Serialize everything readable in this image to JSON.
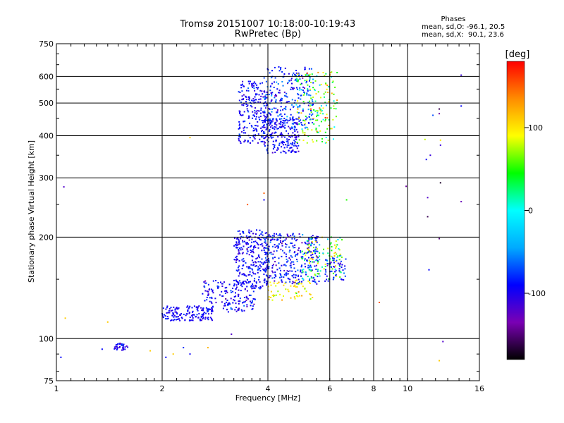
{
  "header": {
    "title_line1": "Tromsø 20151007 10:18:00-10:19:43",
    "title_line2": "RwPretec (Bp)"
  },
  "phases_box": {
    "title": "Phases",
    "line_o": "mean, sd,O: -96.1, 20.5",
    "line_x": "mean, sd,X:  90.1, 23.6"
  },
  "colorbar": {
    "unit_label": "[deg]",
    "range": [
      -180,
      180
    ],
    "ticks": [
      {
        "value": 100,
        "label": "100"
      },
      {
        "value": 0,
        "label": "0"
      },
      {
        "value": -100,
        "label": "-100"
      }
    ],
    "colors": [
      "#000000",
      "#7a00b4",
      "#0000ff",
      "#00aaff",
      "#00ffff",
      "#00ff00",
      "#ffff00",
      "#ff8c00",
      "#ff0000"
    ]
  },
  "chart_data": {
    "type": "scatter",
    "title": "Tromsø 20151007 10:18:00-10:19:43",
    "subtitle": "RwPretec (Bp)",
    "xlabel": "Frequency [MHz]",
    "ylabel": "Stationary phase Virtual Height [km]",
    "x_scale": "log",
    "y_scale": "log",
    "xlim": [
      1,
      16
    ],
    "ylim": [
      75,
      750
    ],
    "x_ticks": [
      1,
      2,
      4,
      6,
      8,
      10,
      16
    ],
    "x_tick_labels": [
      "1",
      "2",
      "4",
      "6",
      "8",
      "10",
      "16"
    ],
    "y_ticks": [
      75,
      100,
      200,
      300,
      400,
      500,
      600,
      750
    ],
    "y_tick_labels": [
      "75",
      "100",
      "200",
      "300",
      "400",
      "500",
      "600",
      "750"
    ],
    "grid": true,
    "color_variable": "phase [deg]",
    "clusters": [
      {
        "freq_range": [
          1.45,
          1.6
        ],
        "height_range": [
          92,
          97
        ],
        "phase_mean": -100,
        "phase_sd": 15,
        "n": 35
      },
      {
        "freq_range": [
          2.0,
          2.8
        ],
        "height_range": [
          113,
          125
        ],
        "phase_mean": -95,
        "phase_sd": 10,
        "n": 150
      },
      {
        "freq_range": [
          2.6,
          3.7
        ],
        "height_range": [
          120,
          150
        ],
        "phase_mean": -95,
        "phase_sd": 15,
        "n": 180
      },
      {
        "freq_range": [
          3.2,
          4.0
        ],
        "height_range": [
          140,
          210
        ],
        "phase_mean": -95,
        "phase_sd": 12,
        "n": 260
      },
      {
        "freq_range": [
          3.9,
          5.6
        ],
        "height_range": [
          145,
          205
        ],
        "phase_mean": -90,
        "phase_sd": 20,
        "n": 320
      },
      {
        "freq_range": [
          4.0,
          5.4
        ],
        "height_range": [
          130,
          150
        ],
        "phase_mean": 100,
        "phase_sd": 15,
        "n": 60
      },
      {
        "freq_range": [
          5.0,
          6.5
        ],
        "height_range": [
          150,
          200
        ],
        "phase_mean": 40,
        "phase_sd": 40,
        "n": 120
      },
      {
        "freq_range": [
          5.8,
          6.7
        ],
        "height_range": [
          148,
          175
        ],
        "phase_mean": -90,
        "phase_sd": 15,
        "n": 50
      },
      {
        "freq_range": [
          3.3,
          4.0
        ],
        "height_range": [
          380,
          580
        ],
        "phase_mean": -95,
        "phase_sd": 12,
        "n": 220
      },
      {
        "freq_range": [
          3.9,
          4.9
        ],
        "height_range": [
          355,
          450
        ],
        "phase_mean": -95,
        "phase_sd": 12,
        "n": 200
      },
      {
        "freq_range": [
          3.9,
          5.4
        ],
        "height_range": [
          420,
          640
        ],
        "phase_mean": -80,
        "phase_sd": 22,
        "n": 250
      },
      {
        "freq_range": [
          4.8,
          6.3
        ],
        "height_range": [
          380,
          620
        ],
        "phase_mean": 60,
        "phase_sd": 45,
        "n": 170
      }
    ],
    "sparse_points": [
      {
        "freq": 1.05,
        "height": 282,
        "phase": -120
      },
      {
        "freq": 1.03,
        "height": 88,
        "phase": -90
      },
      {
        "freq": 1.06,
        "height": 115,
        "phase": 110
      },
      {
        "freq": 1.35,
        "height": 93,
        "phase": -90
      },
      {
        "freq": 1.4,
        "height": 112,
        "phase": 110
      },
      {
        "freq": 1.85,
        "height": 92,
        "phase": 110
      },
      {
        "freq": 2.05,
        "height": 88,
        "phase": -90
      },
      {
        "freq": 2.15,
        "height": 90,
        "phase": 110
      },
      {
        "freq": 2.3,
        "height": 94,
        "phase": -80
      },
      {
        "freq": 2.4,
        "height": 90,
        "phase": -95
      },
      {
        "freq": 2.4,
        "height": 395,
        "phase": 110
      },
      {
        "freq": 2.7,
        "height": 94,
        "phase": 120
      },
      {
        "freq": 3.15,
        "height": 103,
        "phase": -120
      },
      {
        "freq": 3.5,
        "height": 250,
        "phase": 150
      },
      {
        "freq": 3.9,
        "height": 270,
        "phase": 150
      },
      {
        "freq": 3.9,
        "height": 258,
        "phase": -95
      },
      {
        "freq": 6.7,
        "height": 258,
        "phase": 50
      },
      {
        "freq": 8.3,
        "height": 128,
        "phase": 150
      },
      {
        "freq": 9.9,
        "height": 283,
        "phase": -140
      },
      {
        "freq": 11.2,
        "height": 390,
        "phase": 80
      },
      {
        "freq": 11.3,
        "height": 340,
        "phase": -95
      },
      {
        "freq": 11.4,
        "height": 262,
        "phase": -120
      },
      {
        "freq": 11.4,
        "height": 230,
        "phase": -160
      },
      {
        "freq": 11.5,
        "height": 160,
        "phase": -90
      },
      {
        "freq": 11.6,
        "height": 350,
        "phase": -110
      },
      {
        "freq": 11.8,
        "height": 460,
        "phase": -70
      },
      {
        "freq": 12.3,
        "height": 480,
        "phase": -160
      },
      {
        "freq": 12.3,
        "height": 465,
        "phase": -140
      },
      {
        "freq": 12.4,
        "height": 388,
        "phase": 100
      },
      {
        "freq": 12.4,
        "height": 375,
        "phase": -110
      },
      {
        "freq": 12.4,
        "height": 290,
        "phase": -170
      },
      {
        "freq": 12.3,
        "height": 198,
        "phase": -150
      },
      {
        "freq": 12.6,
        "height": 98,
        "phase": -120
      },
      {
        "freq": 12.3,
        "height": 86,
        "phase": 110
      },
      {
        "freq": 14.2,
        "height": 605,
        "phase": -110
      },
      {
        "freq": 14.2,
        "height": 490,
        "phase": -90
      },
      {
        "freq": 14.2,
        "height": 255,
        "phase": -130
      }
    ]
  }
}
